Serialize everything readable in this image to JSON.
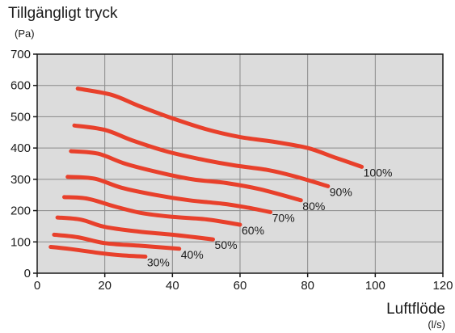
{
  "chart_data": {
    "type": "line",
    "ylabel": "Tillgängligt tryck",
    "yunit": "(Pa)",
    "xlabel": "Luftflöde",
    "xunit": "(l/s)",
    "xlim": [
      0,
      120
    ],
    "ylim": [
      0,
      700
    ],
    "xticks": [
      0,
      20,
      40,
      60,
      80,
      100,
      120
    ],
    "yticks": [
      0,
      100,
      200,
      300,
      400,
      500,
      600,
      700
    ],
    "grid": true,
    "line_color": "#e8402b",
    "background_color": "#dcdcdc",
    "series": [
      {
        "name": "100%",
        "x": [
          12,
          22,
          30,
          40,
          50,
          60,
          70,
          80,
          88,
          96
        ],
        "y": [
          590,
          570,
          535,
          495,
          460,
          435,
          420,
          400,
          370,
          340
        ]
      },
      {
        "name": "90%",
        "x": [
          11,
          20,
          28,
          38,
          48,
          58,
          68,
          76,
          86
        ],
        "y": [
          472,
          458,
          425,
          390,
          365,
          345,
          330,
          310,
          278
        ]
      },
      {
        "name": "80%",
        "x": [
          10,
          18,
          26,
          36,
          46,
          56,
          66,
          78
        ],
        "y": [
          390,
          382,
          350,
          322,
          300,
          288,
          268,
          233
        ]
      },
      {
        "name": "70%",
        "x": [
          9,
          17,
          25,
          35,
          45,
          55,
          62,
          69
        ],
        "y": [
          308,
          302,
          273,
          250,
          233,
          222,
          210,
          195
        ]
      },
      {
        "name": "60%",
        "x": [
          8,
          15,
          23,
          31,
          40,
          50,
          60
        ],
        "y": [
          243,
          238,
          213,
          192,
          180,
          172,
          155
        ]
      },
      {
        "name": "50%",
        "x": [
          6,
          13,
          20,
          30,
          40,
          52
        ],
        "y": [
          178,
          171,
          148,
          133,
          123,
          108
        ]
      },
      {
        "name": "40%",
        "x": [
          5,
          12,
          20,
          30,
          42
        ],
        "y": [
          123,
          115,
          96,
          88,
          78
        ]
      },
      {
        "name": "30%",
        "x": [
          4,
          10,
          18,
          25,
          32
        ],
        "y": [
          84,
          77,
          65,
          57,
          53
        ]
      }
    ]
  }
}
